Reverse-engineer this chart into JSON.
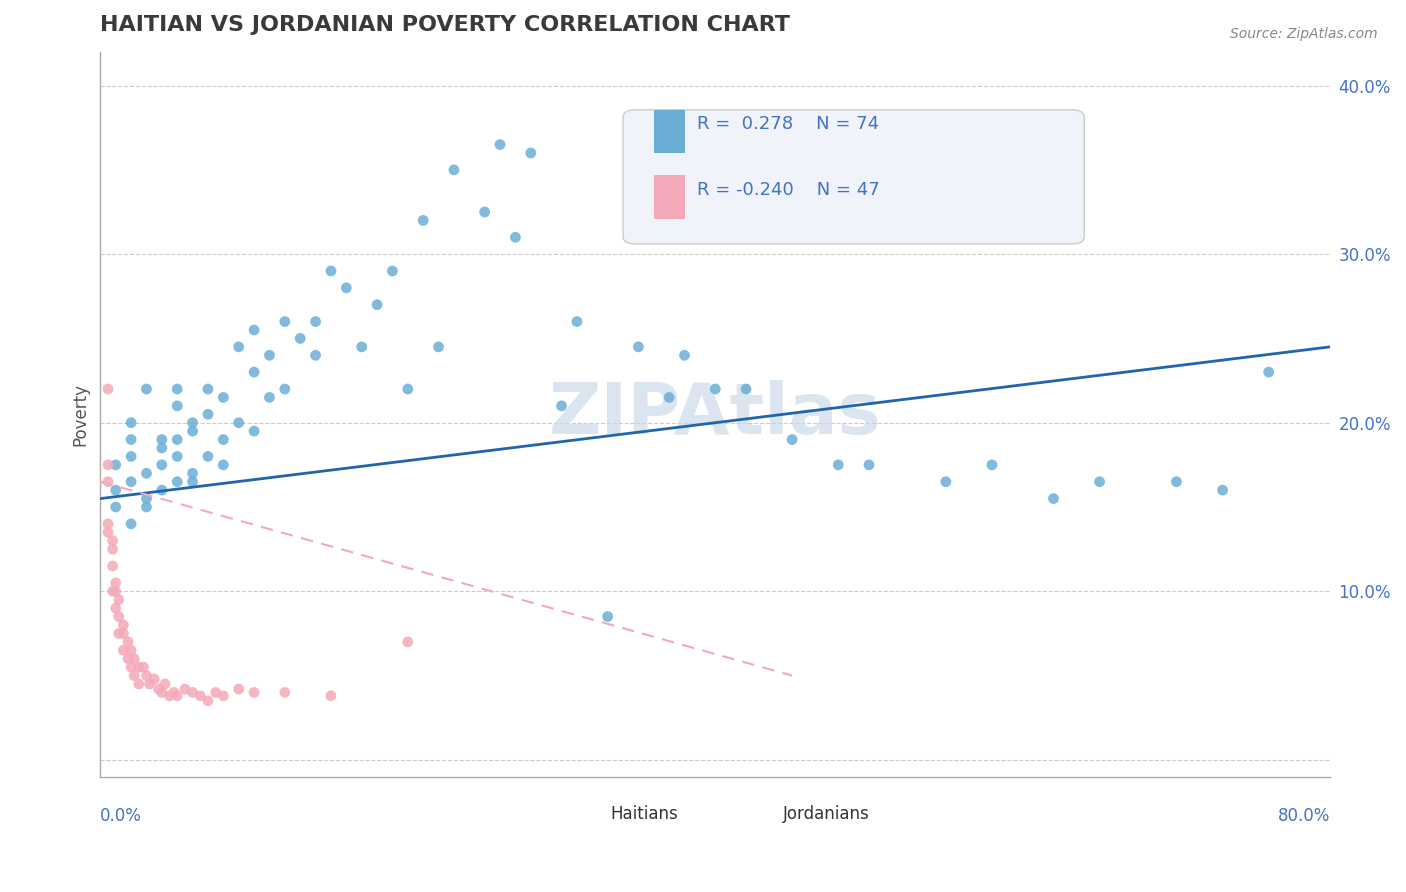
{
  "title": "HAITIAN VS JORDANIAN POVERTY CORRELATION CHART",
  "source": "Source: ZipAtlas.com",
  "ylabel": "Poverty",
  "watermark": "ZIPAtlas",
  "xlim": [
    0.0,
    0.8
  ],
  "ylim": [
    -0.01,
    0.42
  ],
  "yticks": [
    0.0,
    0.1,
    0.2,
    0.3,
    0.4
  ],
  "ytick_labels": [
    "",
    "10.0%",
    "20.0%",
    "30.0%",
    "40.0%"
  ],
  "blue_color": "#6aaed6",
  "pink_color": "#f4a9b8",
  "blue_line_color": "#2166ac",
  "title_color": "#3a3a3a",
  "axis_label_color": "#4472c4",
  "grid_color": "#cccccc",
  "watermark_color": "#c8d8e8",
  "blue_scatter_x": [
    0.01,
    0.01,
    0.01,
    0.02,
    0.02,
    0.02,
    0.02,
    0.02,
    0.03,
    0.03,
    0.03,
    0.03,
    0.04,
    0.04,
    0.04,
    0.04,
    0.05,
    0.05,
    0.05,
    0.05,
    0.05,
    0.06,
    0.06,
    0.06,
    0.06,
    0.07,
    0.07,
    0.07,
    0.08,
    0.08,
    0.08,
    0.09,
    0.09,
    0.1,
    0.1,
    0.1,
    0.11,
    0.11,
    0.12,
    0.12,
    0.13,
    0.14,
    0.14,
    0.15,
    0.16,
    0.17,
    0.18,
    0.19,
    0.2,
    0.21,
    0.22,
    0.23,
    0.25,
    0.26,
    0.27,
    0.28,
    0.3,
    0.31,
    0.33,
    0.35,
    0.37,
    0.38,
    0.4,
    0.42,
    0.45,
    0.48,
    0.5,
    0.55,
    0.58,
    0.62,
    0.65,
    0.7,
    0.73,
    0.76
  ],
  "blue_scatter_y": [
    0.175,
    0.15,
    0.16,
    0.18,
    0.14,
    0.165,
    0.19,
    0.2,
    0.15,
    0.17,
    0.155,
    0.22,
    0.185,
    0.16,
    0.19,
    0.175,
    0.22,
    0.165,
    0.18,
    0.21,
    0.19,
    0.2,
    0.17,
    0.195,
    0.165,
    0.22,
    0.18,
    0.205,
    0.175,
    0.19,
    0.215,
    0.245,
    0.2,
    0.23,
    0.195,
    0.255,
    0.24,
    0.215,
    0.26,
    0.22,
    0.25,
    0.26,
    0.24,
    0.29,
    0.28,
    0.245,
    0.27,
    0.29,
    0.22,
    0.32,
    0.245,
    0.35,
    0.325,
    0.365,
    0.31,
    0.36,
    0.21,
    0.26,
    0.085,
    0.245,
    0.215,
    0.24,
    0.22,
    0.22,
    0.19,
    0.175,
    0.175,
    0.165,
    0.175,
    0.155,
    0.165,
    0.165,
    0.16,
    0.23
  ],
  "pink_scatter_x": [
    0.005,
    0.005,
    0.005,
    0.005,
    0.005,
    0.008,
    0.008,
    0.008,
    0.008,
    0.01,
    0.01,
    0.01,
    0.012,
    0.012,
    0.012,
    0.015,
    0.015,
    0.015,
    0.018,
    0.018,
    0.02,
    0.02,
    0.022,
    0.022,
    0.025,
    0.025,
    0.028,
    0.03,
    0.032,
    0.035,
    0.038,
    0.04,
    0.042,
    0.045,
    0.048,
    0.05,
    0.055,
    0.06,
    0.065,
    0.07,
    0.075,
    0.08,
    0.09,
    0.1,
    0.12,
    0.15,
    0.2
  ],
  "pink_scatter_y": [
    0.22,
    0.175,
    0.165,
    0.14,
    0.135,
    0.13,
    0.125,
    0.115,
    0.1,
    0.105,
    0.1,
    0.09,
    0.095,
    0.085,
    0.075,
    0.08,
    0.075,
    0.065,
    0.07,
    0.06,
    0.065,
    0.055,
    0.06,
    0.05,
    0.055,
    0.045,
    0.055,
    0.05,
    0.045,
    0.048,
    0.042,
    0.04,
    0.045,
    0.038,
    0.04,
    0.038,
    0.042,
    0.04,
    0.038,
    0.035,
    0.04,
    0.038,
    0.042,
    0.04,
    0.04,
    0.038,
    0.07
  ],
  "blue_line_x": [
    0.0,
    0.8
  ],
  "blue_line_y": [
    0.155,
    0.245
  ],
  "pink_line_x": [
    0.0,
    0.45
  ],
  "pink_line_y": [
    0.165,
    0.05
  ]
}
